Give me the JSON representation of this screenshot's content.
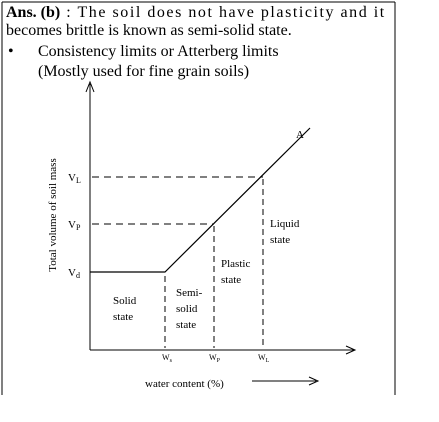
{
  "answer": {
    "label": "Ans. (b)",
    "line1": ": The soil does not have plasticity and it",
    "line2": "becomes brittle is known as semi-solid state."
  },
  "bullet": {
    "text": "Consistency limits or Atterberg limits",
    "note": "(Mostly used for fine grain soils)"
  },
  "diagram": {
    "y_axis_label": "Total volume of soil mass",
    "x_axis_label": "water content (%)",
    "curve_label": "A",
    "y_labels": [
      {
        "main": "V",
        "sub": "L"
      },
      {
        "main": "V",
        "sub": "P"
      },
      {
        "main": "V",
        "sub": "d"
      }
    ],
    "x_labels": [
      {
        "main": "W",
        "sub": "s"
      },
      {
        "main": "W",
        "sub": "P"
      },
      {
        "main": "W",
        "sub": "L"
      }
    ],
    "states": [
      {
        "lines": [
          "Solid",
          "state"
        ]
      },
      {
        "lines": [
          "Semi-",
          "solid",
          "state"
        ]
      },
      {
        "lines": [
          "Plastic",
          "state"
        ]
      },
      {
        "lines": [
          "Liquid",
          "state"
        ]
      }
    ]
  }
}
